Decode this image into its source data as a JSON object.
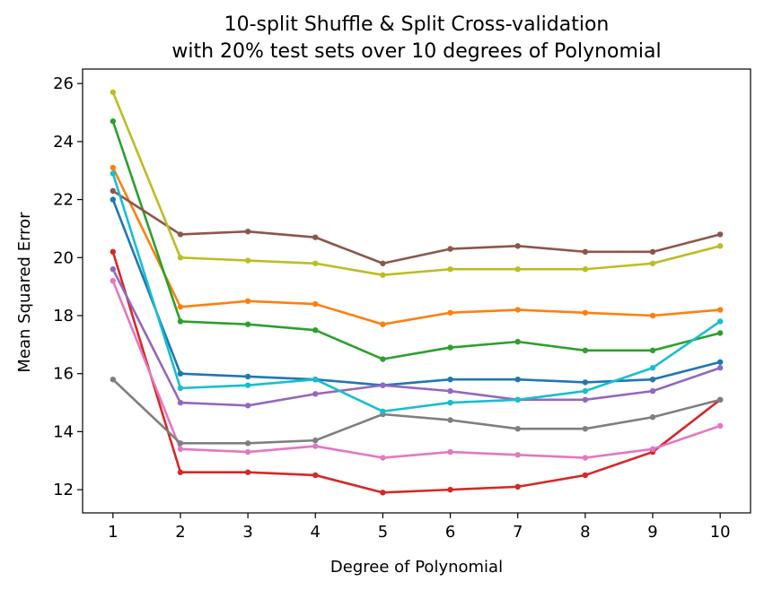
{
  "chart_data": {
    "type": "line",
    "title_lines": [
      "10-split Shuffle & Split Cross-validation",
      "with 20% test sets over 10 degrees of Polynomial"
    ],
    "xlabel": "Degree of Polynomial",
    "ylabel": "Mean Squared Error",
    "x": [
      1,
      2,
      3,
      4,
      5,
      6,
      7,
      8,
      9,
      10
    ],
    "xticks": [
      "1",
      "2",
      "3",
      "4",
      "5",
      "6",
      "7",
      "8",
      "9",
      "10"
    ],
    "yticks": [
      "12",
      "14",
      "16",
      "18",
      "20",
      "22",
      "24",
      "26"
    ],
    "xlim": [
      0.55,
      10.45
    ],
    "ylim": [
      11.2,
      26.5
    ],
    "grid": false,
    "legend": false,
    "series": [
      {
        "color": "#1f77b4",
        "values": [
          22.0,
          16.0,
          15.9,
          15.8,
          15.6,
          15.8,
          15.8,
          15.7,
          15.8,
          16.4
        ]
      },
      {
        "color": "#ff7f0e",
        "values": [
          23.1,
          18.3,
          18.5,
          18.4,
          17.7,
          18.1,
          18.2,
          18.1,
          18.0,
          18.2
        ]
      },
      {
        "color": "#2ca02c",
        "values": [
          24.7,
          17.8,
          17.7,
          17.5,
          16.5,
          16.9,
          17.1,
          16.8,
          16.8,
          17.4
        ]
      },
      {
        "color": "#d62728",
        "values": [
          20.2,
          12.6,
          12.6,
          12.5,
          11.9,
          12.0,
          12.1,
          12.5,
          13.3,
          15.1
        ]
      },
      {
        "color": "#9467bd",
        "values": [
          19.6,
          15.0,
          14.9,
          15.3,
          15.6,
          15.4,
          15.1,
          15.1,
          15.4,
          16.2
        ]
      },
      {
        "color": "#8c564b",
        "values": [
          22.3,
          20.8,
          20.9,
          20.7,
          19.8,
          20.3,
          20.4,
          20.2,
          20.2,
          20.8
        ]
      },
      {
        "color": "#e377c2",
        "values": [
          19.2,
          13.4,
          13.3,
          13.5,
          13.1,
          13.3,
          13.2,
          13.1,
          13.4,
          14.2
        ]
      },
      {
        "color": "#7f7f7f",
        "values": [
          15.8,
          13.6,
          13.6,
          13.7,
          14.6,
          14.4,
          14.1,
          14.1,
          14.5,
          15.1
        ]
      },
      {
        "color": "#bcbd22",
        "values": [
          25.7,
          20.0,
          19.9,
          19.8,
          19.4,
          19.6,
          19.6,
          19.6,
          19.8,
          20.4
        ]
      },
      {
        "color": "#17becf",
        "values": [
          22.9,
          15.5,
          15.6,
          15.8,
          14.7,
          15.0,
          15.1,
          15.4,
          16.2,
          17.8
        ]
      }
    ]
  }
}
